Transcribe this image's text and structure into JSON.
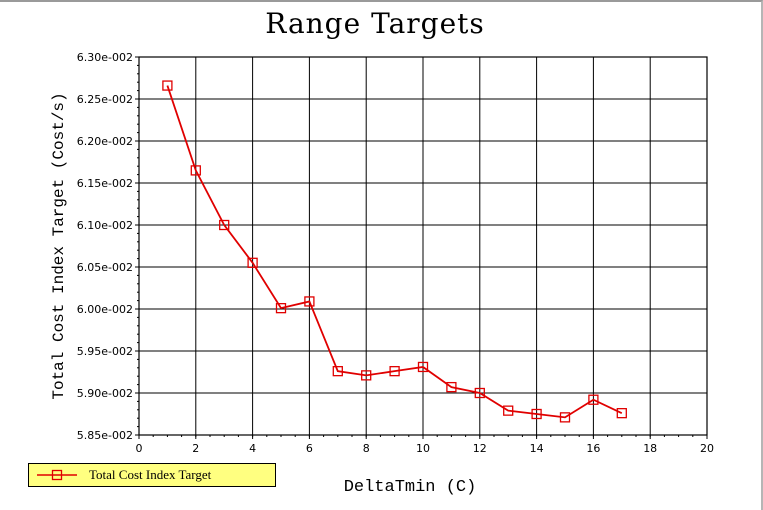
{
  "chart_data": {
    "type": "line",
    "title": "Range Targets",
    "xlabel": "DeltaTmin (C)",
    "ylabel": "Total Cost Index Target (Cost/s)",
    "xlim": [
      0,
      20
    ],
    "ylim": [
      0.0585,
      0.063
    ],
    "x_ticks": [
      "0",
      "2",
      "4",
      "6",
      "8",
      "10",
      "12",
      "14",
      "16",
      "18",
      "20"
    ],
    "y_ticks": [
      "5.85e-002",
      "5.90e-002",
      "5.95e-002",
      "6.00e-002",
      "6.05e-002",
      "6.10e-002",
      "6.15e-002",
      "6.20e-002",
      "6.25e-002",
      "6.30e-002"
    ],
    "grid": true,
    "legend": "bottom-left",
    "series": [
      {
        "name": "Total Cost Index Target",
        "color": "#e00000",
        "marker": "square",
        "x": [
          1,
          2,
          3,
          4,
          5,
          6,
          7,
          8,
          9,
          10,
          11,
          12,
          13,
          14,
          15,
          16,
          17
        ],
        "y": [
          0.06266,
          0.06165,
          0.061,
          0.06055,
          0.06001,
          0.06009,
          0.05926,
          0.05921,
          0.05926,
          0.05931,
          0.05907,
          0.059,
          0.05879,
          0.05875,
          0.05871,
          0.05892,
          0.05876
        ]
      }
    ]
  }
}
